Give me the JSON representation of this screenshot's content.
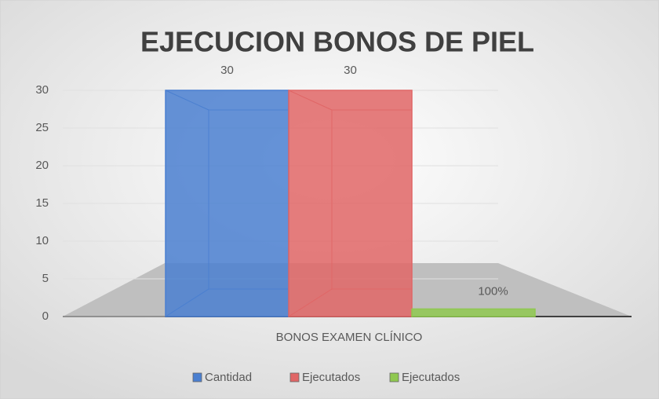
{
  "chart_data": {
    "type": "bar",
    "title": "EJECUCION BONOS DE PIEL",
    "categories": [
      "BONOS EXAMEN CLÍNICO"
    ],
    "series": [
      {
        "name": "Cantidad",
        "color": "#4a7fd0",
        "values": [
          30
        ]
      },
      {
        "name": "Ejecutados",
        "color": "#e06666",
        "values": [
          30
        ]
      },
      {
        "name": "Ejecutados",
        "color": "#8fc850",
        "values": [
          1
        ],
        "value_labels": [
          "100%"
        ]
      }
    ],
    "ylim": [
      0,
      30
    ],
    "yticks": [
      0,
      5,
      10,
      15,
      20,
      25,
      30
    ],
    "grid": true,
    "legend": "bottom"
  }
}
